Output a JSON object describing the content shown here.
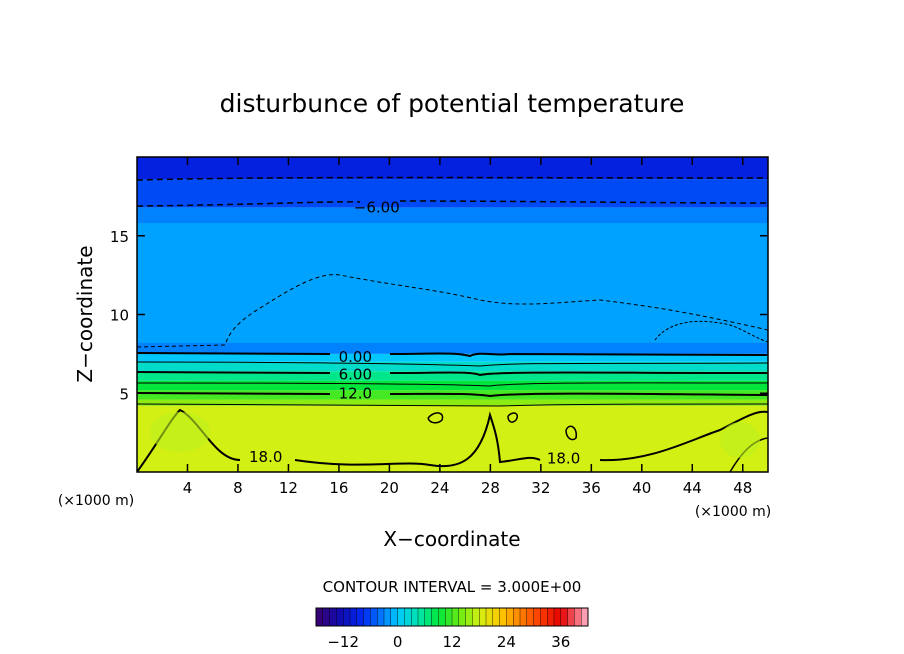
{
  "chart_data": {
    "type": "heatmap",
    "title": "disturbunce of potential temperature",
    "xlabel": "X−coordinate",
    "ylabel": "Z−coordinate",
    "x_unit_left": "(×1000 m)",
    "x_unit_right": "(×1000 m)",
    "xlim": [
      0,
      50
    ],
    "ylim": [
      0,
      20
    ],
    "x_ticks": [
      4,
      8,
      12,
      16,
      20,
      24,
      28,
      32,
      36,
      40,
      44,
      48
    ],
    "y_ticks": [
      5,
      10,
      15
    ],
    "contour_interval_label": "CONTOUR INTERVAL = 3.000E+00",
    "colorbar": {
      "range": [
        -18,
        42
      ],
      "ticks": [
        -12,
        0,
        12,
        24,
        36
      ]
    },
    "contour_labels": [
      {
        "text": "−6.00",
        "x": 19,
        "y": 16.8
      },
      {
        "text": "0.00",
        "x": 17.3,
        "y": 7.3
      },
      {
        "text": "6.00",
        "x": 17.3,
        "y": 6.2
      },
      {
        "text": "12.0",
        "x": 17.3,
        "y": 5.0
      },
      {
        "text": "18.0",
        "x": 10.2,
        "y": 0.95
      },
      {
        "text": "18.0",
        "x": 33.8,
        "y": 0.85
      }
    ],
    "bands": [
      {
        "z": [
          0,
          4.2
        ],
        "value": 18
      },
      {
        "z": [
          4.2,
          4.6
        ],
        "value": 15
      },
      {
        "z": [
          4.6,
          5.2
        ],
        "value": 12
      },
      {
        "z": [
          5.2,
          5.8
        ],
        "value": 9
      },
      {
        "z": [
          5.8,
          6.4
        ],
        "value": 6
      },
      {
        "z": [
          6.4,
          7.0
        ],
        "value": 3
      },
      {
        "z": [
          7.0,
          7.5
        ],
        "value": 0
      },
      {
        "z": [
          7.5,
          16.8
        ],
        "value": -3
      },
      {
        "z": [
          16.8,
          18.6
        ],
        "value": -6
      },
      {
        "z": [
          18.6,
          20
        ],
        "value": -9
      }
    ]
  }
}
